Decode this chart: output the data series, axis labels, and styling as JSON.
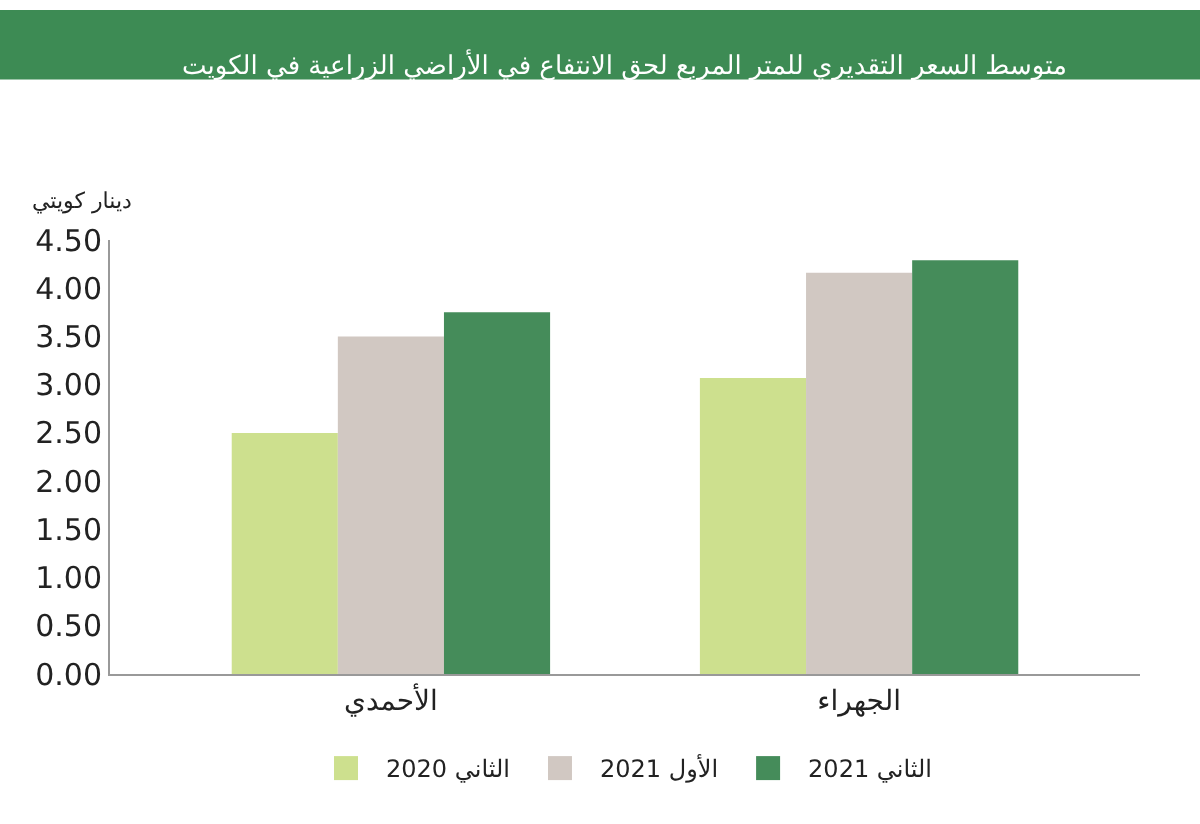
{
  "chart_data": {
    "type": "bar",
    "title": "متوسط السعر التقديري للمتر المربع لحق الانتفاع في الأراضي الزراعية في الكويت",
    "ylabel": "دينار كويتي",
    "categories": [
      "الأحمدي",
      "الجهراء"
    ],
    "series": [
      {
        "name": "الثاني 2020",
        "color": "#cde08e",
        "values": [
          2.5,
          3.07
        ]
      },
      {
        "name": "الأول 2021",
        "color": "#d1c8c2",
        "values": [
          3.5,
          4.16
        ]
      },
      {
        "name": "الثاني 2021",
        "color": "#458c5a",
        "values": [
          3.75,
          4.29
        ]
      }
    ],
    "ylim": [
      0,
      4.5
    ],
    "yticks": [
      {
        "value": 0,
        "label": "0.00"
      },
      {
        "value": 0.5,
        "label": "0.50"
      },
      {
        "value": 1,
        "label": "1.00"
      },
      {
        "value": 1.5,
        "label": "1.50"
      },
      {
        "value": 2,
        "label": "2.00"
      },
      {
        "value": 2.5,
        "label": "2.50"
      },
      {
        "value": 3,
        "label": "3.00"
      },
      {
        "value": 3.5,
        "label": "3.50"
      },
      {
        "value": 4,
        "label": "4.00"
      },
      {
        "value": 4.5,
        "label": "4.50"
      }
    ],
    "legend": "bottom"
  }
}
